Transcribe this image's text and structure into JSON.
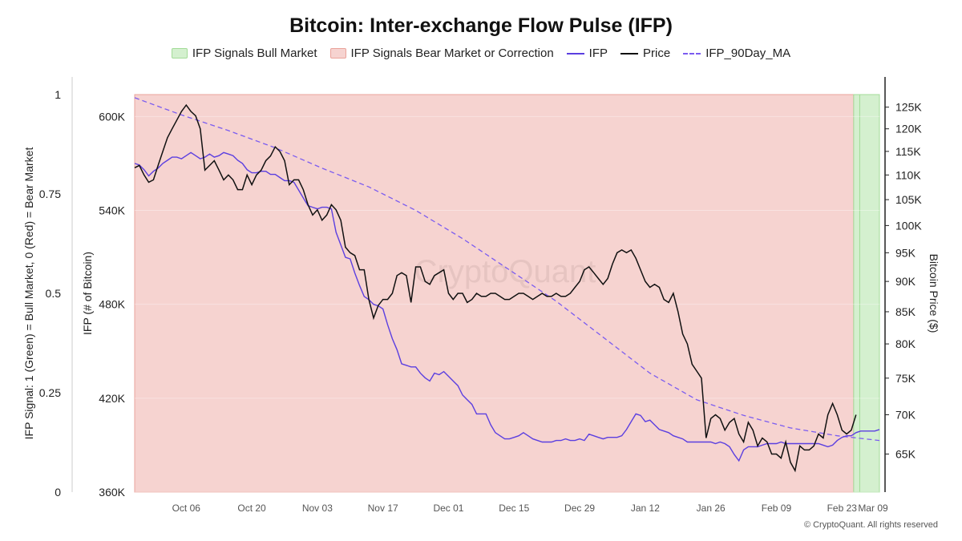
{
  "chart_data": {
    "type": "line",
    "title": "Bitcoin: Inter-exchange Flow Pulse (IFP)",
    "colors": {
      "bull_fill": "#d4f0cf",
      "bull_border": "#a3dc98",
      "bear_fill": "#f6d3d0",
      "bear_border": "#eaa39b",
      "ifp": "#5b3fe0",
      "price": "#111111",
      "ma": "#7b5cf0"
    },
    "legend": [
      {
        "label": "IFP Signals Bull Market",
        "kind": "bull-swatch"
      },
      {
        "label": "IFP Signals Bear Market or Correction",
        "kind": "bear-swatch"
      },
      {
        "label": "IFP",
        "kind": "ifp-line"
      },
      {
        "label": "Price",
        "kind": "price-line"
      },
      {
        "label": "IFP_90Day_MA",
        "kind": "ma-line"
      }
    ],
    "left_axis": {
      "label": "IFP Signal: 1 (Green) = Bull Market, 0 (Red) = Bear Market",
      "ticks": [
        {
          "v": 0,
          "t": "0"
        },
        {
          "v": 0.25,
          "t": "0.25"
        },
        {
          "v": 0.5,
          "t": "0.5"
        },
        {
          "v": 0.75,
          "t": "0.75"
        },
        {
          "v": 1,
          "t": "1"
        }
      ],
      "range": [
        0,
        1
      ]
    },
    "ifp_axis": {
      "label": "IFP (# of Bitcoin)",
      "ticks": [
        {
          "v": 360000,
          "t": "360K"
        },
        {
          "v": 420000,
          "t": "420K"
        },
        {
          "v": 480000,
          "t": "480K"
        },
        {
          "v": 540000,
          "t": "540K"
        },
        {
          "v": 600000,
          "t": "600K"
        }
      ],
      "range": [
        360000,
        614000
      ]
    },
    "price_axis": {
      "label": "Bitcoin Price ($)",
      "scale": "log",
      "ticks": [
        {
          "v": 65000,
          "t": "65K"
        },
        {
          "v": 70000,
          "t": "70K"
        },
        {
          "v": 75000,
          "t": "75K"
        },
        {
          "v": 80000,
          "t": "80K"
        },
        {
          "v": 85000,
          "t": "85K"
        },
        {
          "v": 90000,
          "t": "90K"
        },
        {
          "v": 95000,
          "t": "95K"
        },
        {
          "v": 100000,
          "t": "100K"
        },
        {
          "v": 105000,
          "t": "105K"
        },
        {
          "v": 110000,
          "t": "110K"
        },
        {
          "v": 115000,
          "t": "115K"
        },
        {
          "v": 120000,
          "t": "120K"
        },
        {
          "v": 125000,
          "t": "125K"
        }
      ],
      "range": [
        60500,
        128000
      ]
    },
    "x_axis": {
      "range_days": [
        0,
        159
      ],
      "ticks": [
        {
          "d": 11,
          "t": "Oct 06"
        },
        {
          "d": 25,
          "t": "Oct 20"
        },
        {
          "d": 39,
          "t": "Nov 03"
        },
        {
          "d": 53,
          "t": "Nov 17"
        },
        {
          "d": 67,
          "t": "Dec 01"
        },
        {
          "d": 81,
          "t": "Dec 15"
        },
        {
          "d": 95,
          "t": "Dec 29"
        },
        {
          "d": 109,
          "t": "Jan 12"
        },
        {
          "d": 123,
          "t": "Jan 26"
        },
        {
          "d": 137,
          "t": "Feb 09"
        },
        {
          "d": 151,
          "t": "Feb 23"
        },
        {
          "d": 165,
          "t": "Mar 09"
        }
      ]
    },
    "regimes": [
      {
        "start": 0,
        "end": 153.5,
        "signal": 0
      },
      {
        "start": 153.5,
        "end": 154.8,
        "signal": 1
      },
      {
        "start": 154.8,
        "end": 159,
        "signal": 1
      }
    ],
    "ifp_series": [
      [
        0,
        570000
      ],
      [
        1,
        569000
      ],
      [
        2,
        566000
      ],
      [
        3,
        562000
      ],
      [
        4,
        565000
      ],
      [
        5,
        567000
      ],
      [
        6,
        570000
      ],
      [
        7,
        572000
      ],
      [
        8,
        574000
      ],
      [
        9,
        574000
      ],
      [
        10,
        573000
      ],
      [
        11,
        575000
      ],
      [
        12,
        577000
      ],
      [
        13,
        575000
      ],
      [
        14,
        573000
      ],
      [
        15,
        574000
      ],
      [
        16,
        576000
      ],
      [
        17,
        574000
      ],
      [
        18,
        575000
      ],
      [
        19,
        577000
      ],
      [
        20,
        576000
      ],
      [
        21,
        575000
      ],
      [
        22,
        572000
      ],
      [
        23,
        570000
      ],
      [
        24,
        566000
      ],
      [
        25,
        564000
      ],
      [
        26,
        564000
      ],
      [
        27,
        565000
      ],
      [
        28,
        565000
      ],
      [
        29,
        563000
      ],
      [
        30,
        563000
      ],
      [
        31,
        561000
      ],
      [
        32,
        559000
      ],
      [
        33,
        559000
      ],
      [
        34,
        558000
      ],
      [
        35,
        553000
      ],
      [
        36,
        548000
      ],
      [
        37,
        543000
      ],
      [
        38,
        542000
      ],
      [
        39,
        541000
      ],
      [
        40,
        542000
      ],
      [
        41,
        542000
      ],
      [
        42,
        541000
      ],
      [
        43,
        526000
      ],
      [
        44,
        518000
      ],
      [
        45,
        510000
      ],
      [
        46,
        509000
      ],
      [
        47,
        500000
      ],
      [
        48,
        492000
      ],
      [
        49,
        485000
      ],
      [
        50,
        483000
      ],
      [
        51,
        480000
      ],
      [
        52,
        479000
      ],
      [
        53,
        477000
      ],
      [
        54,
        467000
      ],
      [
        55,
        458000
      ],
      [
        56,
        451000
      ],
      [
        57,
        442000
      ],
      [
        58,
        441000
      ],
      [
        59,
        440000
      ],
      [
        60,
        440000
      ],
      [
        61,
        436000
      ],
      [
        62,
        433000
      ],
      [
        63,
        431000
      ],
      [
        64,
        436000
      ],
      [
        65,
        435000
      ],
      [
        66,
        437000
      ],
      [
        67,
        434000
      ],
      [
        68,
        431000
      ],
      [
        69,
        428000
      ],
      [
        70,
        422000
      ],
      [
        71,
        419000
      ],
      [
        72,
        416000
      ],
      [
        73,
        410000
      ],
      [
        74,
        410000
      ],
      [
        75,
        410000
      ],
      [
        76,
        403000
      ],
      [
        77,
        398000
      ],
      [
        78,
        396000
      ],
      [
        79,
        394000
      ],
      [
        80,
        394000
      ],
      [
        81,
        395000
      ],
      [
        82,
        396000
      ],
      [
        83,
        398000
      ],
      [
        84,
        396000
      ],
      [
        85,
        394000
      ],
      [
        86,
        393000
      ],
      [
        87,
        392000
      ],
      [
        88,
        392000
      ],
      [
        89,
        392000
      ],
      [
        90,
        393000
      ],
      [
        91,
        393000
      ],
      [
        92,
        394000
      ],
      [
        93,
        393000
      ],
      [
        94,
        393000
      ],
      [
        95,
        394000
      ],
      [
        96,
        393000
      ],
      [
        97,
        397000
      ],
      [
        98,
        396000
      ],
      [
        99,
        395000
      ],
      [
        100,
        394000
      ],
      [
        101,
        395000
      ],
      [
        102,
        395000
      ],
      [
        103,
        395000
      ],
      [
        104,
        396000
      ],
      [
        105,
        400000
      ],
      [
        106,
        405000
      ],
      [
        107,
        410000
      ],
      [
        108,
        409000
      ],
      [
        109,
        405000
      ],
      [
        110,
        406000
      ],
      [
        111,
        403000
      ],
      [
        112,
        400000
      ],
      [
        113,
        399000
      ],
      [
        114,
        398000
      ],
      [
        115,
        396000
      ],
      [
        116,
        395000
      ],
      [
        117,
        394000
      ],
      [
        118,
        392000
      ],
      [
        119,
        392000
      ],
      [
        120,
        392000
      ],
      [
        121,
        392000
      ],
      [
        122,
        392000
      ],
      [
        123,
        392000
      ],
      [
        124,
        391000
      ],
      [
        125,
        392000
      ],
      [
        126,
        391000
      ],
      [
        127,
        389000
      ],
      [
        128,
        384000
      ],
      [
        129,
        380000
      ],
      [
        130,
        387000
      ],
      [
        131,
        389000
      ],
      [
        132,
        389000
      ],
      [
        133,
        389000
      ],
      [
        134,
        390000
      ],
      [
        135,
        391000
      ],
      [
        136,
        391000
      ],
      [
        137,
        391000
      ],
      [
        138,
        392000
      ],
      [
        139,
        391000
      ],
      [
        140,
        391000
      ],
      [
        141,
        391000
      ],
      [
        142,
        391000
      ],
      [
        143,
        391000
      ],
      [
        144,
        391000
      ],
      [
        145,
        391000
      ],
      [
        146,
        391000
      ],
      [
        147,
        390000
      ],
      [
        148,
        389000
      ],
      [
        149,
        390000
      ],
      [
        150,
        393000
      ],
      [
        151,
        395000
      ],
      [
        152,
        396000
      ],
      [
        153,
        396000
      ],
      [
        154,
        398000
      ],
      [
        155,
        399000
      ],
      [
        156,
        399000
      ],
      [
        157,
        399000
      ],
      [
        158,
        399000
      ],
      [
        159,
        400000
      ]
    ],
    "ma_series": [
      [
        0,
        612000
      ],
      [
        10,
        601000
      ],
      [
        20,
        591000
      ],
      [
        30,
        580000
      ],
      [
        40,
        567000
      ],
      [
        50,
        555000
      ],
      [
        60,
        540000
      ],
      [
        70,
        522000
      ],
      [
        80,
        502000
      ],
      [
        90,
        482000
      ],
      [
        100,
        459000
      ],
      [
        110,
        436000
      ],
      [
        120,
        419000
      ],
      [
        130,
        409000
      ],
      [
        140,
        401000
      ],
      [
        150,
        396000
      ],
      [
        159,
        393000
      ]
    ],
    "price_series": [
      [
        0,
        111500
      ],
      [
        1,
        112000
      ],
      [
        2,
        110000
      ],
      [
        3,
        108500
      ],
      [
        4,
        109000
      ],
      [
        5,
        112000
      ],
      [
        6,
        115000
      ],
      [
        7,
        118000
      ],
      [
        8,
        120000
      ],
      [
        9,
        122000
      ],
      [
        10,
        124000
      ],
      [
        11,
        125500
      ],
      [
        12,
        124000
      ],
      [
        13,
        123000
      ],
      [
        14,
        120000
      ],
      [
        15,
        111000
      ],
      [
        16,
        112000
      ],
      [
        17,
        113000
      ],
      [
        18,
        111000
      ],
      [
        19,
        109000
      ],
      [
        20,
        110000
      ],
      [
        21,
        109000
      ],
      [
        22,
        107000
      ],
      [
        23,
        107000
      ],
      [
        24,
        110000
      ],
      [
        25,
        108000
      ],
      [
        26,
        110000
      ],
      [
        27,
        111000
      ],
      [
        28,
        113000
      ],
      [
        29,
        114000
      ],
      [
        30,
        116000
      ],
      [
        31,
        115000
      ],
      [
        32,
        113000
      ],
      [
        33,
        108000
      ],
      [
        34,
        109000
      ],
      [
        35,
        109000
      ],
      [
        36,
        107000
      ],
      [
        37,
        104000
      ],
      [
        38,
        102000
      ],
      [
        39,
        103000
      ],
      [
        40,
        101000
      ],
      [
        41,
        102000
      ],
      [
        42,
        104000
      ],
      [
        43,
        103000
      ],
      [
        44,
        101000
      ],
      [
        45,
        96000
      ],
      [
        46,
        95000
      ],
      [
        47,
        94500
      ],
      [
        48,
        92000
      ],
      [
        49,
        92000
      ],
      [
        50,
        87000
      ],
      [
        51,
        84000
      ],
      [
        52,
        86000
      ],
      [
        53,
        87000
      ],
      [
        54,
        87000
      ],
      [
        55,
        88000
      ],
      [
        56,
        91000
      ],
      [
        57,
        91500
      ],
      [
        58,
        91000
      ],
      [
        59,
        86500
      ],
      [
        60,
        92500
      ],
      [
        61,
        92500
      ],
      [
        62,
        90000
      ],
      [
        63,
        89500
      ],
      [
        64,
        91000
      ],
      [
        65,
        91500
      ],
      [
        66,
        92000
      ],
      [
        67,
        88000
      ],
      [
        68,
        87000
      ],
      [
        69,
        88000
      ],
      [
        70,
        88000
      ],
      [
        71,
        86500
      ],
      [
        72,
        87000
      ],
      [
        73,
        88000
      ],
      [
        74,
        87500
      ],
      [
        75,
        87500
      ],
      [
        76,
        88000
      ],
      [
        77,
        88000
      ],
      [
        78,
        87500
      ],
      [
        79,
        87000
      ],
      [
        80,
        87000
      ],
      [
        81,
        87500
      ],
      [
        82,
        88000
      ],
      [
        83,
        88000
      ],
      [
        84,
        87500
      ],
      [
        85,
        87000
      ],
      [
        86,
        87500
      ],
      [
        87,
        88000
      ],
      [
        88,
        87500
      ],
      [
        89,
        87500
      ],
      [
        90,
        88000
      ],
      [
        91,
        87500
      ],
      [
        92,
        87500
      ],
      [
        93,
        88000
      ],
      [
        94,
        89000
      ],
      [
        95,
        90000
      ],
      [
        96,
        92000
      ],
      [
        97,
        92500
      ],
      [
        98,
        91500
      ],
      [
        99,
        90500
      ],
      [
        100,
        89500
      ],
      [
        101,
        90500
      ],
      [
        102,
        93000
      ],
      [
        103,
        95000
      ],
      [
        104,
        95500
      ],
      [
        105,
        95000
      ],
      [
        106,
        95500
      ],
      [
        107,
        94000
      ],
      [
        108,
        92000
      ],
      [
        109,
        90000
      ],
      [
        110,
        89000
      ],
      [
        111,
        89500
      ],
      [
        112,
        89000
      ],
      [
        113,
        87000
      ],
      [
        114,
        86500
      ],
      [
        115,
        88000
      ],
      [
        116,
        85000
      ],
      [
        117,
        81500
      ],
      [
        118,
        80000
      ],
      [
        119,
        77000
      ],
      [
        120,
        76000
      ],
      [
        121,
        75000
      ],
      [
        122,
        67000
      ],
      [
        123,
        69500
      ],
      [
        124,
        70000
      ],
      [
        125,
        69500
      ],
      [
        126,
        68000
      ],
      [
        127,
        69000
      ],
      [
        128,
        69500
      ],
      [
        129,
        67500
      ],
      [
        130,
        66500
      ],
      [
        131,
        69000
      ],
      [
        132,
        68000
      ],
      [
        133,
        66000
      ],
      [
        134,
        67000
      ],
      [
        135,
        66500
      ],
      [
        136,
        65000
      ],
      [
        137,
        65000
      ],
      [
        138,
        64500
      ],
      [
        139,
        66500
      ],
      [
        140,
        64000
      ],
      [
        141,
        63000
      ],
      [
        142,
        66000
      ],
      [
        143,
        65500
      ],
      [
        144,
        65500
      ],
      [
        145,
        66000
      ],
      [
        146,
        67500
      ],
      [
        147,
        67000
      ],
      [
        148,
        70000
      ],
      [
        149,
        71500
      ],
      [
        150,
        70000
      ],
      [
        151,
        68000
      ],
      [
        152,
        67500
      ],
      [
        153,
        68000
      ],
      [
        154,
        70000
      ]
    ]
  },
  "footer": {
    "copyright": "© CryptoQuant. All rights reserved"
  },
  "watermark": "CryptoQuant"
}
